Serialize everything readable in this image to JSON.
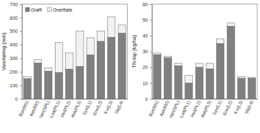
{
  "chart_data": [
    {
      "type": "bar",
      "stacked": true,
      "y_label": "Vannføring (mm)",
      "categories": [
        "Bye(M1)",
        "Aas(M2)",
        "Van(SPL)",
        "Lod(PL1)",
        "Hol(PL2)",
        "Ask(PL3)",
        "Syv(L1)",
        "Ene(L2)",
        "Kvi(L3)",
        "Skj(L4)"
      ],
      "series": [
        {
          "name": "Grøft",
          "color": "#808080",
          "values": [
            150,
            265,
            205,
            195,
            220,
            240,
            325,
            425,
            455,
            485
          ]
        },
        {
          "name": "Overflate",
          "color": "#f2f2f2",
          "values": [
            15,
            25,
            25,
            220,
            120,
            260,
            125,
            75,
            150,
            60
          ]
        }
      ],
      "ylim": [
        0,
        700
      ],
      "yticks": [
        0,
        100,
        200,
        300,
        400,
        500,
        600,
        700
      ],
      "legend": "upper left",
      "grid": false
    },
    {
      "type": "bar",
      "stacked": true,
      "y_label": "TN-tap (kg/ha)",
      "categories": [
        "Bye(M1)",
        "Aas(M2)",
        "Van(SPL)",
        "Lod(PL1)",
        "Hol(PL2)",
        "Ask(PL3)",
        "Syv(L1)",
        "Ene(L2)",
        "Kvi(L3)",
        "Skj(L4)"
      ],
      "series": [
        {
          "color": "#808080",
          "values": [
            28,
            26,
            21,
            10,
            20,
            19,
            35,
            46,
            13,
            13
          ]
        },
        {
          "color": "#f2f2f2",
          "values": [
            1,
            1,
            1.5,
            5,
            2.5,
            3.5,
            3,
            2,
            1,
            0.5
          ]
        }
      ],
      "ylim": [
        0,
        60
      ],
      "yticks": [
        0,
        10,
        20,
        30,
        40,
        50,
        60
      ],
      "grid": false
    }
  ]
}
